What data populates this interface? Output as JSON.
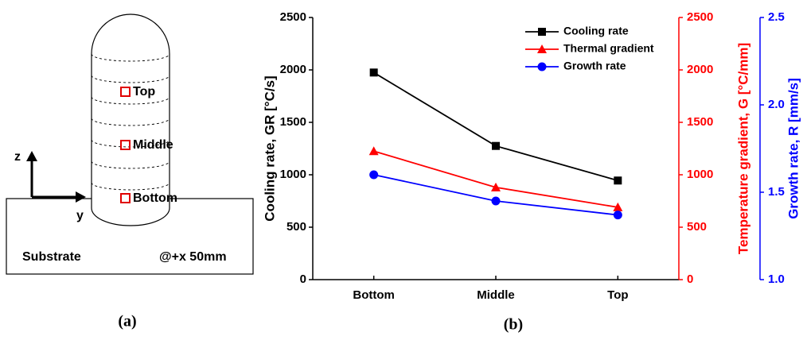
{
  "diagram": {
    "labels": {
      "top": "Top",
      "middle": "Middle",
      "bottom": "Bottom"
    },
    "axes": {
      "z": "z",
      "y": "y"
    },
    "substrate": "Substrate",
    "position": "@+x 50mm",
    "caption": "(a)"
  },
  "chart_caption": "(b)",
  "chart_data": {
    "type": "line",
    "categories": [
      "Bottom",
      "Middle",
      "Top"
    ],
    "ylabel": "Cooling rate, GR [°C/s]",
    "y2label": "Temperature gradient, G [°C/mm]",
    "y3label": "Growth rate, R [mm/s]",
    "ylim": [
      0,
      2500
    ],
    "yticks": [
      0,
      500,
      1000,
      1500,
      2000,
      2500
    ],
    "y2lim": [
      0,
      2500
    ],
    "y2ticks": [
      0,
      500,
      1000,
      1500,
      2000,
      2500
    ],
    "y2color": "#ff0000",
    "y3lim": [
      1,
      2.5
    ],
    "y3ticks": [
      {
        "value": 1,
        "label": "1.0"
      },
      1.5,
      {
        "value": 2,
        "label": "2.0"
      },
      2.5
    ],
    "y3color": "#0000ff",
    "legend": "upper right",
    "series": [
      {
        "name": "Cooling rate",
        "color": "#000000",
        "marker": "square",
        "values": [
          1975,
          1275,
          945
        ]
      },
      {
        "name": "Thermal gradient",
        "color": "#ff0000",
        "marker": "triangle",
        "axis": "y2",
        "values": [
          1225,
          880,
          690
        ]
      },
      {
        "name": "Growth rate",
        "color": "#0000ff",
        "marker": "circle",
        "axis": "y3",
        "values": [
          1.6,
          1.45,
          1.37
        ]
      }
    ]
  }
}
